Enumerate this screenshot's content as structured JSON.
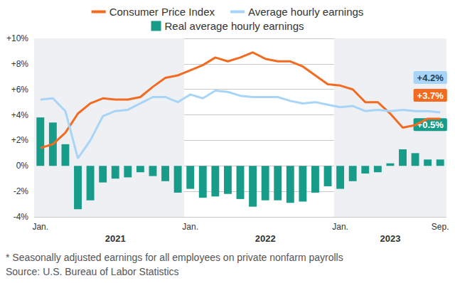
{
  "chart_data": {
    "type": "line",
    "categories": [
      "Jan.",
      null,
      null,
      null,
      null,
      null,
      null,
      null,
      null,
      null,
      null,
      null,
      "Jan.",
      null,
      null,
      null,
      null,
      null,
      null,
      null,
      null,
      null,
      null,
      null,
      "Jan.",
      null,
      null,
      null,
      null,
      null,
      null,
      null,
      "Sep."
    ],
    "year_categories": [
      null,
      null,
      null,
      null,
      null,
      null,
      "2021",
      null,
      null,
      null,
      null,
      null,
      null,
      null,
      null,
      null,
      null,
      null,
      "2022",
      null,
      null,
      null,
      null,
      null,
      null,
      null,
      null,
      null,
      "2023",
      null,
      null,
      null,
      null
    ],
    "series": [
      {
        "name": "Consumer Price Index",
        "type": "line",
        "color": "#f26b21",
        "values": [
          1.4,
          1.7,
          2.6,
          4.1,
          4.9,
          5.3,
          5.2,
          5.2,
          5.4,
          6.2,
          6.9,
          7.1,
          7.5,
          7.9,
          8.5,
          8.2,
          8.5,
          8.9,
          8.4,
          8.2,
          8.2,
          7.8,
          7.1,
          6.4,
          6.3,
          6.0,
          5.0,
          5.0,
          4.1,
          3.0,
          3.2,
          3.7,
          3.7
        ],
        "value_labels": [
          null,
          null,
          null,
          null,
          null,
          null,
          null,
          null,
          null,
          null,
          null,
          null,
          null,
          null,
          null,
          null,
          null,
          null,
          null,
          null,
          null,
          null,
          null,
          null,
          null,
          null,
          null,
          null,
          null,
          null,
          null,
          null,
          "+3.7%"
        ]
      },
      {
        "name": "Average hourly earnings",
        "type": "line",
        "color": "#a8d5f7",
        "values": [
          5.2,
          5.3,
          4.3,
          0.6,
          2.0,
          3.9,
          4.3,
          4.4,
          4.9,
          5.4,
          5.4,
          5.0,
          5.6,
          5.3,
          5.9,
          5.8,
          5.5,
          5.4,
          5.4,
          5.4,
          5.1,
          4.9,
          5.0,
          4.8,
          4.6,
          4.7,
          4.3,
          4.4,
          4.3,
          4.4,
          4.3,
          4.3,
          4.2
        ],
        "value_labels": [
          null,
          null,
          null,
          null,
          null,
          null,
          null,
          null,
          null,
          null,
          null,
          null,
          null,
          null,
          null,
          null,
          null,
          null,
          null,
          null,
          null,
          null,
          null,
          null,
          null,
          null,
          null,
          null,
          null,
          null,
          null,
          null,
          "+4.2%"
        ]
      },
      {
        "name": "Real average hourly earnings",
        "type": "bar",
        "color": "#179c8a",
        "values": [
          3.8,
          3.4,
          1.7,
          -3.4,
          -2.7,
          -1.3,
          -1.0,
          -0.9,
          -0.5,
          -0.8,
          -1.2,
          -2.1,
          -1.8,
          -2.5,
          -2.4,
          -2.2,
          -2.6,
          -3.2,
          -2.7,
          -2.7,
          -2.9,
          -2.8,
          -2.1,
          -1.6,
          -1.8,
          -1.2,
          -0.6,
          -0.5,
          0.2,
          1.3,
          1.0,
          0.5,
          0.5
        ],
        "value_labels": [
          null,
          null,
          null,
          null,
          null,
          null,
          null,
          null,
          null,
          null,
          null,
          null,
          null,
          null,
          null,
          null,
          null,
          null,
          null,
          null,
          null,
          null,
          null,
          null,
          null,
          null,
          null,
          null,
          null,
          null,
          null,
          null,
          "+0.5%"
        ]
      }
    ],
    "ylim": [
      -4,
      10
    ],
    "yticks": [
      {
        "value": -4,
        "label": "-4%"
      },
      {
        "value": -2,
        "label": "-2%"
      },
      {
        "value": 0,
        "label": "0%"
      },
      {
        "value": 2,
        "label": "+2%"
      },
      {
        "value": 4,
        "label": "+4%"
      },
      {
        "value": 6,
        "label": "+6%"
      },
      {
        "value": 8,
        "label": "+8%"
      },
      {
        "value": 10,
        "label": "+10%"
      }
    ],
    "grid": true,
    "legend": "top",
    "footnotes": [
      "* Seasonally adjusted earnings for all employees on private nonfarm payrolls",
      "Source: U.S. Bureau of Labor Statistics"
    ]
  }
}
